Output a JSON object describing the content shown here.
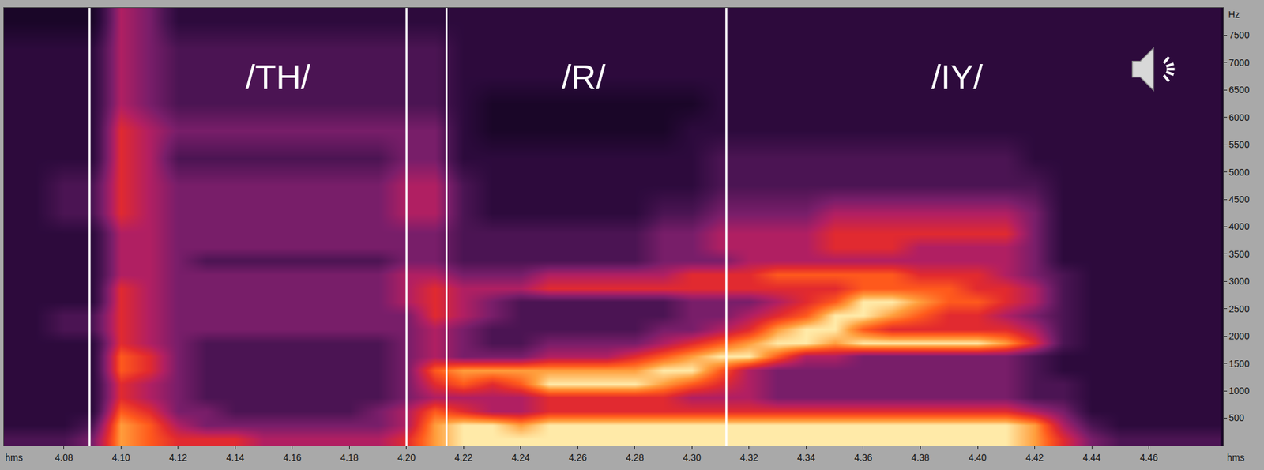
{
  "chart_data": {
    "type": "heatmap",
    "x_label": "hms",
    "y_label": "Hz",
    "x": [
      4.06,
      4.07,
      4.08,
      4.09,
      4.1,
      4.11,
      4.12,
      4.13,
      4.14,
      4.15,
      4.16,
      4.17,
      4.18,
      4.19,
      4.2,
      4.21,
      4.22,
      4.23,
      4.24,
      4.25,
      4.26,
      4.27,
      4.28,
      4.29,
      4.3,
      4.31,
      4.32,
      4.33,
      4.34,
      4.35,
      4.36,
      4.37,
      4.38,
      4.39,
      4.4,
      4.41,
      4.42,
      4.43,
      4.44,
      4.45,
      4.46,
      4.47,
      4.48
    ],
    "y": [
      125,
      375,
      625,
      875,
      1125,
      1375,
      1625,
      1875,
      2125,
      2375,
      2625,
      2875,
      3125,
      3375,
      3625,
      3875,
      4250,
      4750,
      5250,
      5750,
      6250,
      6750,
      7250,
      7750
    ],
    "z": [
      [
        3,
        3,
        3,
        4,
        8,
        7,
        6,
        6,
        6,
        5,
        5,
        5,
        5,
        5,
        6,
        8,
        9,
        9,
        9,
        9,
        9,
        9,
        9,
        9,
        9,
        9,
        9,
        9,
        9,
        9,
        9,
        9,
        9,
        9,
        9,
        9,
        8,
        6,
        4,
        3,
        3,
        3,
        3
      ],
      [
        2,
        2,
        2,
        3,
        8,
        7,
        5,
        4,
        4,
        4,
        4,
        4,
        4,
        4,
        5,
        8,
        9,
        9,
        8,
        9,
        9,
        9,
        9,
        9,
        9,
        9,
        9,
        9,
        9,
        9,
        9,
        9,
        9,
        9,
        9,
        9,
        8,
        5,
        3,
        2,
        2,
        2,
        2
      ],
      [
        2,
        2,
        2,
        2,
        7,
        6,
        4,
        4,
        3,
        3,
        3,
        3,
        3,
        4,
        5,
        7,
        6,
        5,
        5,
        6,
        6,
        6,
        6,
        6,
        6,
        6,
        6,
        6,
        6,
        6,
        6,
        6,
        6,
        6,
        6,
        6,
        5,
        4,
        2,
        2,
        2,
        2,
        2
      ],
      [
        2,
        2,
        2,
        2,
        6,
        5,
        4,
        3,
        3,
        3,
        3,
        3,
        3,
        3,
        4,
        5,
        5,
        5,
        5,
        6,
        6,
        6,
        6,
        6,
        5,
        5,
        5,
        4,
        4,
        4,
        4,
        4,
        4,
        4,
        4,
        4,
        3,
        3,
        2,
        2,
        2,
        2,
        2
      ],
      [
        2,
        2,
        2,
        2,
        6,
        5,
        4,
        3,
        3,
        3,
        3,
        3,
        3,
        3,
        4,
        6,
        7,
        6,
        7,
        9,
        9,
        9,
        9,
        8,
        7,
        6,
        5,
        4,
        4,
        4,
        4,
        4,
        4,
        4,
        4,
        4,
        3,
        3,
        2,
        2,
        2,
        2,
        2
      ],
      [
        2,
        2,
        2,
        2,
        7,
        6,
        4,
        3,
        3,
        3,
        3,
        3,
        3,
        3,
        4,
        7,
        8,
        8,
        8,
        8,
        8,
        8,
        8,
        9,
        9,
        7,
        5,
        4,
        4,
        4,
        4,
        4,
        4,
        4,
        4,
        4,
        3,
        2,
        2,
        2,
        2,
        2,
        2
      ],
      [
        2,
        2,
        2,
        2,
        7,
        6,
        4,
        3,
        3,
        3,
        3,
        3,
        3,
        3,
        4,
        5,
        4,
        4,
        4,
        5,
        5,
        5,
        6,
        7,
        8,
        9,
        9,
        7,
        5,
        5,
        4,
        4,
        4,
        4,
        4,
        4,
        3,
        2,
        2,
        2,
        2,
        2,
        2
      ],
      [
        2,
        2,
        2,
        2,
        6,
        5,
        4,
        3,
        3,
        3,
        3,
        3,
        3,
        3,
        4,
        5,
        4,
        3,
        3,
        4,
        4,
        4,
        4,
        5,
        6,
        7,
        8,
        9,
        9,
        8,
        9,
        9,
        9,
        9,
        9,
        8,
        6,
        3,
        2,
        2,
        2,
        2,
        2
      ],
      [
        2,
        2,
        3,
        3,
        6,
        5,
        4,
        4,
        4,
        4,
        4,
        4,
        4,
        4,
        4,
        5,
        4,
        3,
        3,
        3,
        3,
        3,
        3,
        4,
        4,
        5,
        6,
        8,
        9,
        9,
        7,
        6,
        6,
        6,
        6,
        6,
        5,
        3,
        2,
        2,
        2,
        2,
        2
      ],
      [
        2,
        2,
        3,
        3,
        6,
        5,
        4,
        4,
        4,
        4,
        4,
        4,
        4,
        4,
        4,
        6,
        5,
        4,
        3,
        3,
        3,
        3,
        3,
        3,
        4,
        4,
        5,
        6,
        7,
        9,
        9,
        8,
        7,
        6,
        6,
        5,
        4,
        3,
        2,
        2,
        2,
        2,
        2
      ],
      [
        2,
        2,
        2,
        2,
        6,
        5,
        4,
        4,
        4,
        4,
        4,
        4,
        4,
        4,
        5,
        6,
        5,
        4,
        3,
        3,
        3,
        3,
        3,
        3,
        4,
        4,
        4,
        5,
        6,
        7,
        9,
        9,
        8,
        7,
        7,
        6,
        5,
        3,
        2,
        2,
        2,
        2,
        2
      ],
      [
        2,
        2,
        2,
        2,
        6,
        5,
        4,
        4,
        4,
        4,
        4,
        4,
        4,
        4,
        5,
        6,
        5,
        5,
        5,
        6,
        6,
        6,
        6,
        6,
        6,
        6,
        6,
        6,
        6,
        6,
        7,
        7,
        7,
        7,
        6,
        6,
        5,
        3,
        2,
        2,
        2,
        2,
        2
      ],
      [
        2,
        2,
        2,
        2,
        5,
        5,
        4,
        4,
        4,
        4,
        4,
        4,
        4,
        4,
        5,
        5,
        4,
        4,
        4,
        5,
        5,
        5,
        5,
        5,
        6,
        6,
        6,
        7,
        7,
        7,
        7,
        7,
        6,
        6,
        6,
        5,
        4,
        3,
        2,
        2,
        2,
        2,
        2
      ],
      [
        2,
        2,
        2,
        2,
        5,
        5,
        4,
        3,
        3,
        3,
        3,
        3,
        3,
        3,
        4,
        4,
        3,
        3,
        3,
        3,
        3,
        3,
        3,
        4,
        4,
        4,
        5,
        5,
        5,
        5,
        5,
        5,
        5,
        5,
        5,
        5,
        4,
        2,
        2,
        2,
        2,
        2,
        2
      ],
      [
        2,
        2,
        2,
        2,
        5,
        5,
        4,
        4,
        4,
        4,
        4,
        4,
        4,
        4,
        4,
        4,
        3,
        3,
        3,
        3,
        3,
        3,
        3,
        4,
        4,
        5,
        5,
        5,
        5,
        6,
        6,
        6,
        5,
        5,
        5,
        5,
        4,
        2,
        2,
        2,
        2,
        2,
        2
      ],
      [
        2,
        2,
        2,
        2,
        5,
        5,
        4,
        4,
        4,
        4,
        4,
        4,
        4,
        4,
        4,
        4,
        3,
        3,
        3,
        3,
        3,
        3,
        3,
        4,
        4,
        5,
        5,
        5,
        5,
        6,
        6,
        6,
        6,
        6,
        6,
        6,
        4,
        2,
        2,
        2,
        2,
        2,
        2
      ],
      [
        2,
        2,
        3,
        3,
        6,
        5,
        4,
        4,
        4,
        4,
        4,
        4,
        4,
        4,
        5,
        5,
        3,
        2,
        2,
        2,
        2,
        2,
        2,
        3,
        3,
        4,
        4,
        4,
        4,
        5,
        5,
        5,
        5,
        5,
        5,
        5,
        4,
        2,
        2,
        2,
        2,
        2,
        2
      ],
      [
        2,
        2,
        3,
        3,
        6,
        5,
        4,
        4,
        4,
        4,
        4,
        4,
        4,
        4,
        5,
        5,
        3,
        2,
        2,
        2,
        2,
        2,
        2,
        2,
        2,
        3,
        3,
        3,
        3,
        3,
        3,
        3,
        3,
        3,
        3,
        3,
        3,
        2,
        2,
        2,
        2,
        2,
        2
      ],
      [
        2,
        2,
        2,
        2,
        6,
        5,
        3,
        3,
        3,
        3,
        3,
        3,
        3,
        3,
        4,
        4,
        2,
        2,
        2,
        2,
        2,
        2,
        2,
        2,
        2,
        3,
        3,
        3,
        3,
        3,
        3,
        3,
        3,
        3,
        3,
        3,
        2,
        2,
        2,
        2,
        2,
        2,
        2
      ],
      [
        2,
        2,
        2,
        2,
        6,
        5,
        4,
        4,
        4,
        4,
        4,
        4,
        4,
        4,
        4,
        4,
        2,
        1,
        1,
        1,
        1,
        1,
        1,
        1,
        2,
        2,
        2,
        2,
        2,
        2,
        2,
        2,
        2,
        2,
        2,
        2,
        2,
        2,
        2,
        2,
        2,
        2,
        2
      ],
      [
        2,
        2,
        2,
        2,
        5,
        4,
        3,
        3,
        3,
        3,
        3,
        3,
        3,
        3,
        3,
        3,
        2,
        1,
        1,
        1,
        1,
        1,
        1,
        1,
        1,
        2,
        2,
        2,
        2,
        2,
        2,
        2,
        2,
        2,
        2,
        2,
        2,
        2,
        2,
        2,
        2,
        2,
        2
      ],
      [
        2,
        2,
        2,
        2,
        5,
        4,
        3,
        3,
        3,
        3,
        3,
        3,
        3,
        3,
        3,
        3,
        2,
        2,
        2,
        2,
        2,
        2,
        2,
        2,
        2,
        2,
        2,
        2,
        2,
        2,
        2,
        2,
        2,
        2,
        2,
        2,
        2,
        2,
        2,
        2,
        2,
        2,
        2
      ],
      [
        2,
        2,
        2,
        2,
        5,
        4,
        3,
        3,
        3,
        3,
        3,
        3,
        3,
        3,
        3,
        3,
        2,
        2,
        2,
        2,
        2,
        2,
        2,
        2,
        2,
        2,
        2,
        2,
        2,
        2,
        2,
        2,
        2,
        2,
        2,
        2,
        2,
        2,
        2,
        2,
        2,
        2,
        2
      ],
      [
        1,
        1,
        1,
        1,
        5,
        4,
        2,
        2,
        2,
        2,
        2,
        2,
        2,
        2,
        2,
        2,
        2,
        2,
        2,
        2,
        2,
        2,
        2,
        2,
        2,
        2,
        2,
        2,
        2,
        2,
        2,
        2,
        2,
        2,
        2,
        2,
        2,
        2,
        2,
        2,
        2,
        2,
        2
      ]
    ],
    "zlim": [
      0,
      9
    ],
    "xlim": [
      4.059,
      4.486
    ],
    "xticks": [
      4.08,
      {
        "value": 4.1,
        "label": "4.10"
      },
      4.12,
      4.14,
      4.16,
      4.18,
      {
        "value": 4.2,
        "label": "4.20"
      },
      4.22,
      4.24,
      4.26,
      4.28,
      {
        "value": 4.3,
        "label": "4.30"
      },
      4.32,
      4.34,
      4.36,
      4.38,
      {
        "value": 4.4,
        "label": "4.40"
      },
      4.42,
      4.44,
      4.46
    ],
    "ylim": [
      0,
      8000
    ],
    "yticks": [
      500,
      1000,
      1500,
      2000,
      2500,
      3000,
      3500,
      4000,
      4500,
      5000,
      5500,
      6000,
      6500,
      7000,
      7500
    ],
    "boundaries": [
      4.089,
      4.2,
      4.214,
      4.312
    ],
    "annotations": [
      {
        "text": "/TH/",
        "x": 4.155,
        "y": 6735
      },
      {
        "text": "/R/",
        "x": 4.262,
        "y": 6735
      },
      {
        "text": "/IY/",
        "x": 4.393,
        "y": 6735
      }
    ],
    "grid": false
  }
}
